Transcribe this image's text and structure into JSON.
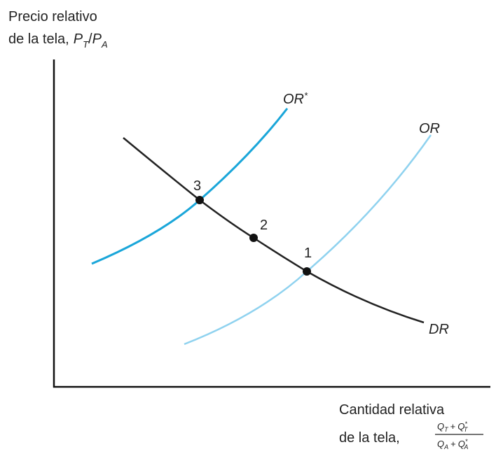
{
  "y_axis": {
    "line1": "Precio relativo",
    "line2": "de la tela,",
    "symbol": {
      "base1": "P",
      "sub1": "T",
      "sep": "/",
      "base2": "P",
      "sub2": "A"
    }
  },
  "x_axis": {
    "line1": "Cantidad relativa",
    "line2": "de la tela,",
    "numerator": {
      "q1": "Q",
      "s1": "T",
      "plus": "+",
      "q2": "Q",
      "star": "*",
      "s2": "T"
    },
    "denominator": {
      "q1": "Q",
      "s1": "A",
      "plus": "+",
      "q2": "Q",
      "star": "*",
      "s2": "A"
    }
  },
  "curves": {
    "or_star": {
      "label": "OR",
      "sup": "*"
    },
    "or": {
      "label": "OR"
    },
    "dr": {
      "label": "DR"
    }
  },
  "points": [
    "1",
    "2",
    "3"
  ]
}
